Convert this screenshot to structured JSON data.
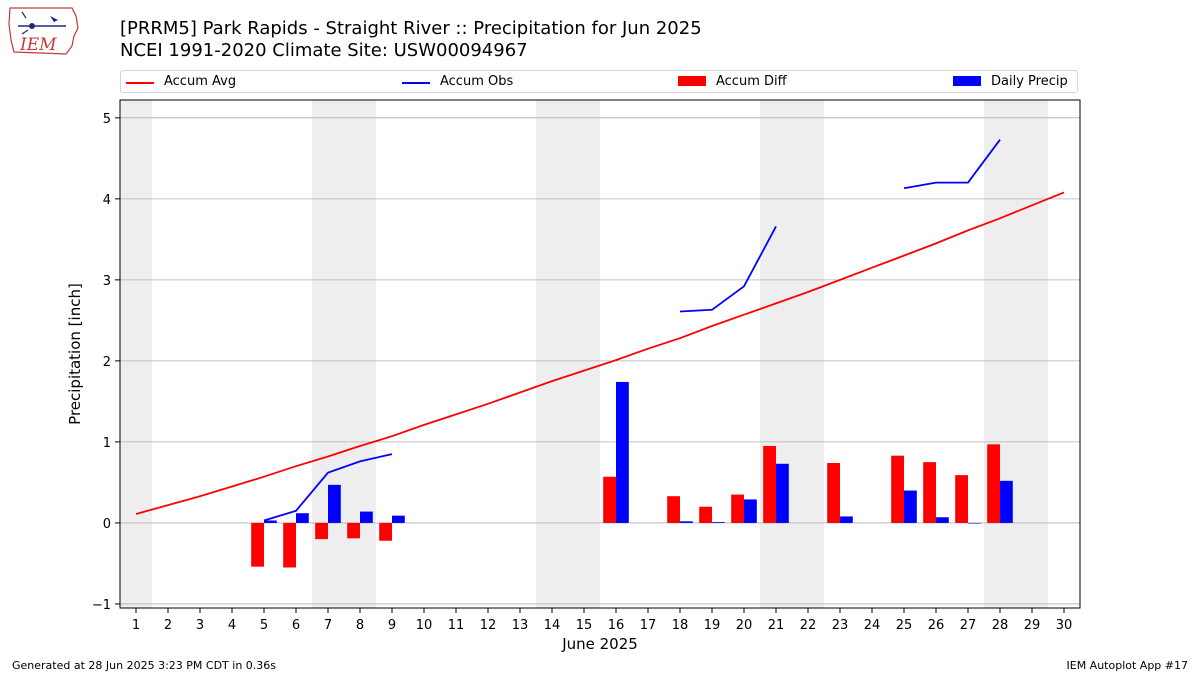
{
  "logo": {
    "text": "IEM"
  },
  "title_line1": "[PRRM5] Park Rapids - Straight River :: Precipitation for Jun 2025",
  "title_line2": "NCEI 1991-2020 Climate Site: USW00094967",
  "legend": [
    {
      "label": "Accum Avg",
      "color": "#ff0000",
      "kind": "line"
    },
    {
      "label": "Accum Obs",
      "color": "#0000ff",
      "kind": "line"
    },
    {
      "label": "Accum Diff",
      "color": "#ff0000",
      "kind": "bar"
    },
    {
      "label": "Daily Precip",
      "color": "#0000ff",
      "kind": "bar"
    }
  ],
  "footer": {
    "left": "Generated at 28 Jun 2025 3:23 PM CDT in 0.36s",
    "right": "IEM Autoplot App #17"
  },
  "chart_data": {
    "type": "bar",
    "xlabel": "June 2025",
    "ylabel": "Precipitation [inch]",
    "xlim": [
      0.5,
      30.5
    ],
    "ylim": [
      -1.05,
      5.22
    ],
    "yticks": [
      -1,
      0,
      1,
      2,
      3,
      4,
      5
    ],
    "grid": true,
    "legend_position": "top",
    "weekend_shading": [
      [
        0.5,
        1.5
      ],
      [
        6.5,
        8.5
      ],
      [
        13.5,
        15.5
      ],
      [
        20.5,
        22.5
      ],
      [
        27.5,
        29.5
      ]
    ],
    "x": [
      1,
      2,
      3,
      4,
      5,
      6,
      7,
      8,
      9,
      10,
      11,
      12,
      13,
      14,
      15,
      16,
      17,
      18,
      19,
      20,
      21,
      22,
      23,
      24,
      25,
      26,
      27,
      28,
      29,
      30
    ],
    "series": [
      {
        "name": "Accum Avg",
        "kind": "line",
        "color": "#ff0000",
        "values": [
          0.11,
          0.22,
          0.33,
          0.45,
          0.57,
          0.7,
          0.82,
          0.95,
          1.07,
          1.21,
          1.34,
          1.47,
          1.61,
          1.75,
          1.88,
          2.01,
          2.15,
          2.28,
          2.43,
          2.57,
          2.71,
          2.85,
          3.0,
          3.15,
          3.3,
          3.45,
          3.61,
          3.76,
          3.92,
          4.08
        ]
      },
      {
        "name": "Accum Obs",
        "kind": "line",
        "color": "#0000ff",
        "values": [
          null,
          null,
          null,
          null,
          0.03,
          0.15,
          0.62,
          0.76,
          0.85,
          null,
          null,
          null,
          null,
          null,
          null,
          null,
          null,
          2.61,
          2.63,
          2.92,
          3.66,
          null,
          null,
          null,
          4.13,
          4.2,
          4.2,
          4.73,
          null,
          null
        ]
      },
      {
        "name": "Accum Diff",
        "kind": "bar",
        "color": "#ff0000",
        "values": [
          null,
          null,
          null,
          null,
          -0.54,
          -0.55,
          -0.2,
          -0.19,
          -0.22,
          null,
          null,
          null,
          null,
          null,
          null,
          0.57,
          null,
          0.33,
          0.2,
          0.35,
          0.95,
          null,
          0.74,
          null,
          0.83,
          0.75,
          0.59,
          0.97,
          null,
          null
        ]
      },
      {
        "name": "Daily Precip",
        "kind": "bar",
        "color": "#0000ff",
        "values": [
          null,
          null,
          null,
          null,
          0.03,
          0.12,
          0.47,
          0.14,
          0.09,
          null,
          null,
          null,
          null,
          null,
          null,
          1.74,
          null,
          0.02,
          0.01,
          0.29,
          0.73,
          null,
          0.08,
          null,
          0.4,
          0.07,
          0.0,
          0.52,
          null,
          null
        ]
      }
    ]
  }
}
